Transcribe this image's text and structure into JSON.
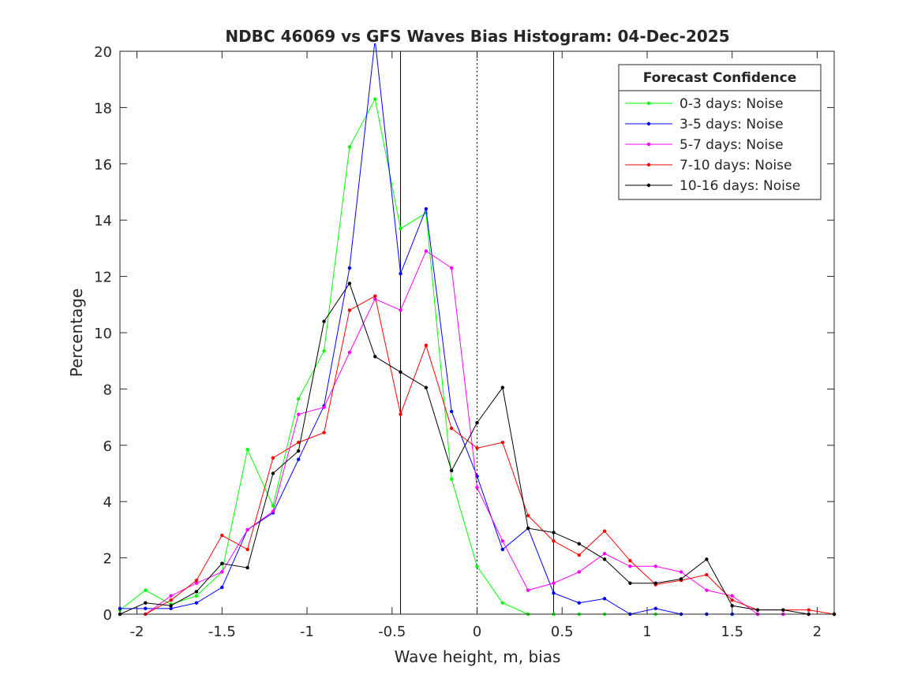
{
  "chart_data": {
    "type": "line",
    "title": "NDBC 46069 vs GFS Waves Bias Histogram: 04-Dec-2025",
    "xlabel": "Wave height, m, bias",
    "ylabel": "Percentage",
    "xlim": [
      -2.1,
      2.1
    ],
    "ylim": [
      0,
      20
    ],
    "xticks": [
      -2,
      -1.5,
      -1,
      -0.5,
      0,
      0.5,
      1,
      1.5,
      2
    ],
    "xtick_labels": [
      "-2",
      "-1.5",
      "-1",
      "-0.5",
      "0",
      "0.5",
      "1",
      "1.5",
      "2"
    ],
    "yticks": [
      0,
      2,
      4,
      6,
      8,
      10,
      12,
      14,
      16,
      18,
      20
    ],
    "ytick_labels": [
      "0",
      "2",
      "4",
      "6",
      "8",
      "10",
      "12",
      "14",
      "16",
      "18",
      "20"
    ],
    "grid": false,
    "legend_title": "Forecast Confidence",
    "legend_position": "top-right",
    "reference_lines": [
      {
        "x": -0.45,
        "style": "solid"
      },
      {
        "x": 0,
        "style": "dotted"
      },
      {
        "x": 0.45,
        "style": "solid"
      }
    ],
    "x": [
      -2.1,
      -1.95,
      -1.8,
      -1.65,
      -1.5,
      -1.35,
      -1.2,
      -1.05,
      -0.9,
      -0.75,
      -0.6,
      -0.45,
      -0.3,
      -0.15,
      0,
      0.15,
      0.3,
      0.45,
      0.6,
      0.75,
      0.9,
      1.05,
      1.2,
      1.35,
      1.5,
      1.65,
      1.8,
      1.95,
      2.1
    ],
    "series": [
      {
        "name": "0-3 days: Noise",
        "color": "#00ff00",
        "values": [
          0.15,
          0.85,
          0.35,
          0.65,
          1.5,
          5.85,
          3.85,
          7.65,
          9.35,
          16.6,
          18.3,
          13.7,
          14.25,
          4.8,
          1.7,
          0.4,
          0,
          0,
          0,
          0,
          0,
          0,
          0,
          0,
          0,
          0,
          0,
          0,
          0
        ]
      },
      {
        "name": "3-5 days: Noise",
        "color": "#0000ff",
        "values": [
          0.2,
          0.2,
          0.2,
          0.4,
          0.95,
          3.0,
          3.6,
          5.5,
          7.4,
          12.3,
          20.4,
          12.1,
          14.4,
          7.2,
          4.9,
          2.3,
          3.05,
          0.75,
          0.4,
          0.55,
          0,
          0.2,
          0,
          0,
          0,
          0,
          0,
          0,
          0
        ]
      },
      {
        "name": "5-7 days: Noise",
        "color": "#ff00ff",
        "values": [
          0,
          0,
          0.65,
          1.1,
          1.5,
          3.0,
          3.65,
          7.1,
          7.35,
          9.3,
          11.2,
          10.8,
          12.9,
          12.3,
          4.5,
          2.6,
          0.85,
          1.1,
          1.5,
          2.15,
          1.7,
          1.7,
          1.5,
          0.85,
          0.65,
          0,
          0,
          0,
          0
        ]
      },
      {
        "name": "7-10 days: Noise",
        "color": "#ff0000",
        "values": [
          0,
          0,
          0.5,
          1.2,
          2.8,
          2.3,
          5.55,
          6.1,
          6.45,
          10.8,
          11.3,
          7.1,
          9.55,
          6.6,
          5.9,
          6.1,
          3.5,
          2.6,
          2.1,
          2.95,
          1.9,
          1.05,
          1.2,
          1.4,
          0.5,
          0.15,
          0.15,
          0.15,
          0
        ]
      },
      {
        "name": "10-16 days: Noise",
        "color": "#000000",
        "values": [
          0,
          0.4,
          0.3,
          0.8,
          1.8,
          1.65,
          5.0,
          5.8,
          10.4,
          11.75,
          9.15,
          8.6,
          8.05,
          5.1,
          6.8,
          8.05,
          3.05,
          2.9,
          2.5,
          1.95,
          1.1,
          1.1,
          1.25,
          1.95,
          0.3,
          0.15,
          0.15,
          0,
          0
        ]
      }
    ]
  }
}
